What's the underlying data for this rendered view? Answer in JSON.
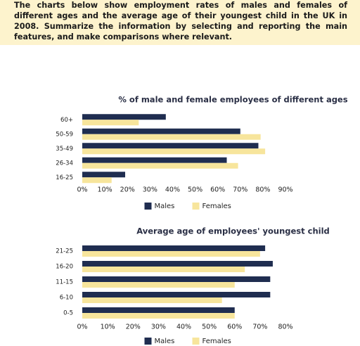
{
  "header": {
    "text": "The charts below show employment rates of males and females of different ages and the average age of their youngest child in the UK in 2008. Summarize the information by selecting and reporting the main features, and make comparisons where relevant."
  },
  "chart_data": [
    {
      "type": "hbar",
      "title": "% of male and female employees of different ages",
      "categories": [
        "60+",
        "50-59",
        "35-49",
        "26-34",
        "16-25"
      ],
      "series": [
        {
          "name": "Males",
          "color": "#1f2d50",
          "values": [
            37,
            70,
            78,
            64,
            19
          ]
        },
        {
          "name": "Females",
          "color": "#f7e59c",
          "values": [
            25,
            79,
            81,
            69,
            13
          ]
        }
      ],
      "xlim": [
        0,
        90
      ],
      "xticks": [
        {
          "value": 0,
          "label": "0%"
        },
        {
          "value": 10,
          "label": "10%"
        },
        {
          "value": 20,
          "label": "20%"
        },
        {
          "value": 30,
          "label": "30%"
        },
        {
          "value": 40,
          "label": "40%"
        },
        {
          "value": 50,
          "label": "50%"
        },
        {
          "value": 60,
          "label": "60%"
        },
        {
          "value": 70,
          "label": "70%"
        },
        {
          "value": 80,
          "label": "80%"
        },
        {
          "value": 90,
          "label": "90%"
        }
      ],
      "grid": false,
      "legend": "bottom"
    },
    {
      "type": "hbar",
      "title": "Average age of employees' youngest child",
      "categories": [
        "21-25",
        "16-20",
        "11-15",
        "6-10",
        "0-5"
      ],
      "series": [
        {
          "name": "Males",
          "color": "#1f2d50",
          "values": [
            72,
            75,
            74,
            74,
            60
          ]
        },
        {
          "name": "Females",
          "color": "#f7e59c",
          "values": [
            70,
            64,
            60,
            55,
            60
          ]
        }
      ],
      "xlim": [
        0,
        80
      ],
      "xticks": [
        {
          "value": 0,
          "label": "0%"
        },
        {
          "value": 10,
          "label": "10%"
        },
        {
          "value": 20,
          "label": "20%"
        },
        {
          "value": 30,
          "label": "30%"
        },
        {
          "value": 40,
          "label": "40%"
        },
        {
          "value": 50,
          "label": "50%"
        },
        {
          "value": 60,
          "label": "60%"
        },
        {
          "value": 70,
          "label": "70%"
        },
        {
          "value": 80,
          "label": "80%"
        }
      ],
      "grid": false,
      "legend": "bottom"
    }
  ]
}
